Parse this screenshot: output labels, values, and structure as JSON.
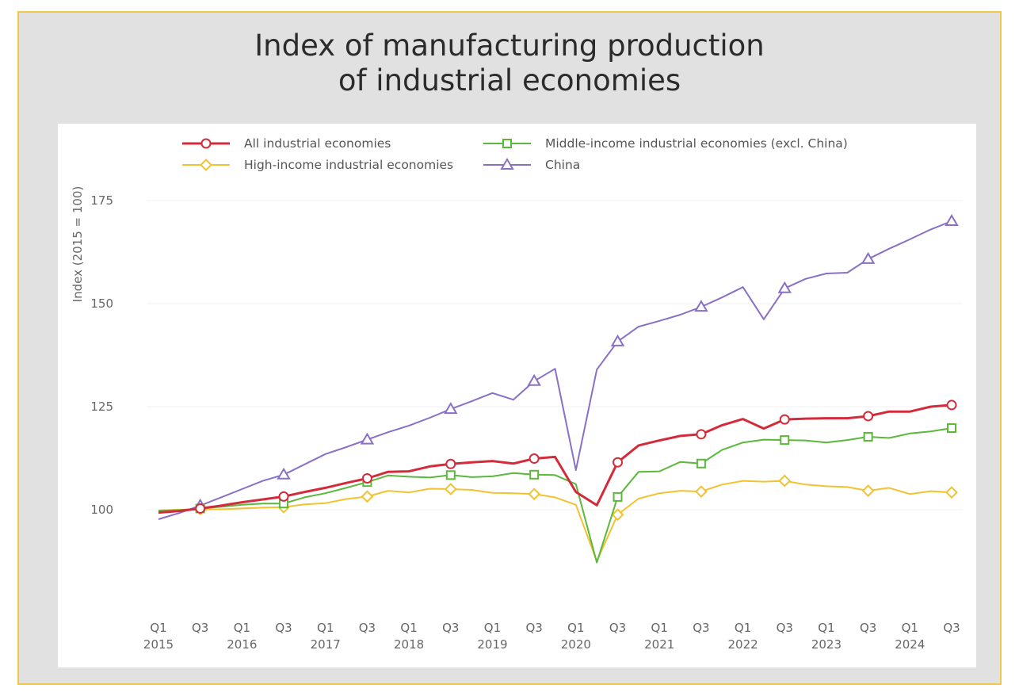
{
  "chart_data": {
    "type": "line",
    "title": "Index of manufacturing production of industrial economies",
    "title_lines": [
      "Index of manufacturing production",
      "of industrial economies"
    ],
    "ylabel": "Index (2015 = 100)",
    "xlabel": "",
    "yticks": [
      100,
      125,
      150,
      175
    ],
    "ylim": [
      76,
      180
    ],
    "grid": "horizontal",
    "legend_position": "top",
    "x": [
      "2015Q1",
      "2015Q2",
      "2015Q3",
      "2015Q4",
      "2016Q1",
      "2016Q2",
      "2016Q3",
      "2016Q4",
      "2017Q1",
      "2017Q2",
      "2017Q3",
      "2017Q4",
      "2018Q1",
      "2018Q2",
      "2018Q3",
      "2018Q4",
      "2019Q1",
      "2019Q2",
      "2019Q3",
      "2019Q4",
      "2020Q1",
      "2020Q2",
      "2020Q3",
      "2020Q4",
      "2021Q1",
      "2021Q2",
      "2021Q3",
      "2021Q4",
      "2022Q1",
      "2022Q2",
      "2022Q3",
      "2022Q4",
      "2023Q1",
      "2023Q2",
      "2023Q3",
      "2023Q4",
      "2024Q1",
      "2024Q2",
      "2024Q3"
    ],
    "x_tick_labels": [
      {
        "q": "Q1",
        "year": "2015",
        "index": 0
      },
      {
        "q": "Q3",
        "year": "",
        "index": 2
      },
      {
        "q": "Q1",
        "year": "2016",
        "index": 4
      },
      {
        "q": "Q3",
        "year": "",
        "index": 6
      },
      {
        "q": "Q1",
        "year": "2017",
        "index": 8
      },
      {
        "q": "Q3",
        "year": "",
        "index": 10
      },
      {
        "q": "Q1",
        "year": "2018",
        "index": 12
      },
      {
        "q": "Q3",
        "year": "",
        "index": 14
      },
      {
        "q": "Q1",
        "year": "2019",
        "index": 16
      },
      {
        "q": "Q3",
        "year": "",
        "index": 18
      },
      {
        "q": "Q1",
        "year": "2020",
        "index": 20
      },
      {
        "q": "Q3",
        "year": "",
        "index": 22
      },
      {
        "q": "Q1",
        "year": "2021",
        "index": 24
      },
      {
        "q": "Q3",
        "year": "",
        "index": 26
      },
      {
        "q": "Q1",
        "year": "2022",
        "index": 28
      },
      {
        "q": "Q3",
        "year": "",
        "index": 30
      },
      {
        "q": "Q1",
        "year": "2023",
        "index": 32
      },
      {
        "q": "Q3",
        "year": "",
        "index": 34
      },
      {
        "q": "Q1",
        "year": "2024",
        "index": 36
      },
      {
        "q": "Q3",
        "year": "",
        "index": 38
      }
    ],
    "series": [
      {
        "name": "All industrial economies",
        "color": "#d42b3b",
        "marker": "circle",
        "width": 3,
        "values": [
          99.3,
          99.7,
          100.3,
          101,
          101.8,
          102.5,
          103.2,
          104.3,
          105.3,
          106.5,
          107.6,
          109.2,
          109.3,
          110.5,
          111.1,
          111.5,
          111.8,
          111.2,
          112.4,
          112.8,
          104.3,
          101.1,
          111.5,
          115.6,
          116.8,
          117.9,
          118.3,
          120.5,
          122,
          119.7,
          121.9,
          122.1,
          122.2,
          122.2,
          122.7,
          123.8,
          123.8,
          125,
          125.4
        ]
      },
      {
        "name": "Middle-income industrial economies (excl. China)",
        "color": "#5ab83a",
        "marker": "square",
        "width": 2,
        "values": [
          99.8,
          99.9,
          100.3,
          100.7,
          101.2,
          101.5,
          101.5,
          103,
          104,
          105.3,
          106.7,
          108.3,
          108,
          107.8,
          108.4,
          107.9,
          108.1,
          108.9,
          108.5,
          108.4,
          106.2,
          87.2,
          103.1,
          109.2,
          109.3,
          111.6,
          111.2,
          114.5,
          116.3,
          117,
          116.9,
          116.8,
          116.3,
          116.9,
          117.7,
          117.4,
          118.5,
          119,
          119.8
        ]
      },
      {
        "name": "High-income industrial economies",
        "color": "#f3c232",
        "marker": "diamond",
        "width": 2,
        "values": [
          99.8,
          100,
          100.1,
          100.1,
          100.3,
          100.5,
          100.6,
          101.3,
          101.6,
          102.6,
          103.2,
          104.6,
          104.2,
          105.1,
          105,
          104.8,
          104.1,
          104,
          103.8,
          103,
          101.2,
          87.5,
          98.8,
          102.7,
          104,
          104.6,
          104.4,
          106.1,
          107,
          106.8,
          107,
          106.1,
          105.7,
          105.5,
          104.6,
          105.3,
          103.8,
          104.5,
          104.2
        ]
      },
      {
        "name": "China",
        "color": "#8a6fc6",
        "marker": "triangle",
        "width": 2,
        "values": [
          97.7,
          99.2,
          101,
          103,
          105,
          107,
          108.5,
          111,
          113.5,
          115.2,
          117,
          118.8,
          120.4,
          122.3,
          124.4,
          126.3,
          128.3,
          126.7,
          131.2,
          134.2,
          109.6,
          134,
          140.8,
          144.4,
          145.8,
          147.3,
          149.2,
          151.5,
          154,
          146.2,
          153.7,
          156,
          157.3,
          157.5,
          160.8,
          163.3,
          165.6,
          168,
          170
        ]
      }
    ]
  }
}
